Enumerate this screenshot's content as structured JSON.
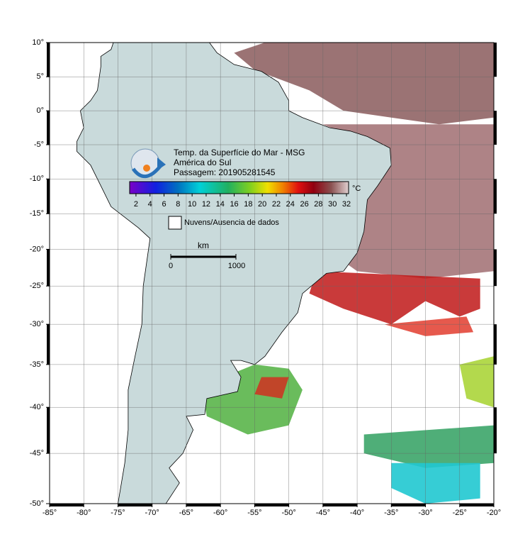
{
  "map": {
    "title_lines": [
      "Temp. da Superfície do Mar - MSG",
      "América do Sul",
      "Passagem: 201905281545"
    ],
    "colorbar": {
      "unit": "°C",
      "lim": [
        1.1,
        32.3
      ],
      "ticks": [
        2,
        4,
        6,
        8,
        10,
        12,
        14,
        16,
        18,
        20,
        22,
        24,
        26,
        28,
        30,
        32
      ]
    },
    "legend": "Nuvens/Ausencia de dados",
    "scale_bar": {
      "unit": "km",
      "labels": [
        0,
        1000
      ]
    },
    "lon_ticks": [
      {
        "value": -85,
        "label": "-85°"
      },
      {
        "value": -80,
        "label": "-80°"
      },
      {
        "value": -75,
        "label": "-75°"
      },
      {
        "value": -70,
        "label": "-70°"
      },
      {
        "value": -65,
        "label": "-65°"
      },
      {
        "value": -60,
        "label": "-60°"
      },
      {
        "value": -55,
        "label": "-55°"
      },
      {
        "value": -50,
        "label": "-50°"
      },
      {
        "value": -45,
        "label": "-45°"
      },
      {
        "value": -40,
        "label": "-40°"
      },
      {
        "value": -35,
        "label": "-35°"
      },
      {
        "value": -30,
        "label": "-30°"
      },
      {
        "value": -25,
        "label": "-25°"
      },
      {
        "value": -20,
        "label": "-20°"
      }
    ],
    "lat_ticks": [
      {
        "value": 10,
        "label": "10°"
      },
      {
        "value": 5,
        "label": "5°"
      },
      {
        "value": 0,
        "label": "0°"
      },
      {
        "value": -5,
        "label": "-5°"
      },
      {
        "value": -10,
        "label": "-10°"
      },
      {
        "value": -15,
        "label": "-15°"
      },
      {
        "value": -20,
        "label": "-20°"
      },
      {
        "value": -25,
        "label": "-25°"
      },
      {
        "value": -30,
        "label": "-30°"
      },
      {
        "value": -35,
        "label": "-35°"
      },
      {
        "value": -40,
        "label": "-40°"
      },
      {
        "value": -45,
        "label": "-45°"
      },
      {
        "value": -50,
        "label": "-50°"
      }
    ]
  }
}
